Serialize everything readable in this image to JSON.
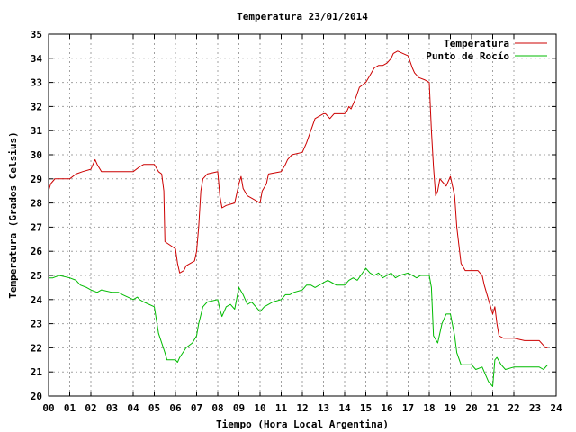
{
  "chart_data": {
    "type": "line",
    "title": "Temperatura 23/01/2014",
    "xlabel": "Tiempo (Hora Local Argentina)",
    "ylabel": "Temperatura (Grados Celsius)",
    "xlim": [
      0,
      24
    ],
    "ylim": [
      20,
      35
    ],
    "x_ticks": [
      "00",
      "01",
      "02",
      "03",
      "04",
      "05",
      "06",
      "07",
      "08",
      "09",
      "10",
      "11",
      "12",
      "13",
      "14",
      "15",
      "16",
      "17",
      "18",
      "19",
      "20",
      "21",
      "22",
      "23",
      "24"
    ],
    "y_ticks": [
      "20",
      "21",
      "22",
      "23",
      "24",
      "25",
      "26",
      "27",
      "28",
      "29",
      "30",
      "31",
      "32",
      "33",
      "34",
      "35"
    ],
    "grid": true,
    "legend_position": "top-right",
    "series": [
      {
        "name": "Temperatura",
        "color": "#cc0000",
        "x": [
          0.0,
          0.1,
          0.2,
          0.3,
          0.5,
          1.0,
          1.3,
          1.6,
          2.0,
          2.2,
          2.3,
          2.5,
          3.0,
          3.5,
          4.0,
          4.3,
          4.5,
          5.0,
          5.2,
          5.35,
          5.45,
          5.5,
          6.0,
          6.1,
          6.2,
          6.4,
          6.5,
          6.9,
          7.0,
          7.1,
          7.2,
          7.3,
          7.5,
          8.0,
          8.1,
          8.2,
          8.4,
          8.8,
          9.0,
          9.1,
          9.2,
          9.4,
          9.6,
          10.0,
          10.1,
          10.3,
          10.4,
          11.0,
          11.2,
          11.3,
          11.5,
          12.0,
          12.2,
          12.4,
          12.6,
          13.0,
          13.1,
          13.3,
          13.5,
          14.0,
          14.1,
          14.2,
          14.3,
          14.5,
          14.7,
          15.0,
          15.2,
          15.4,
          15.6,
          15.8,
          16.0,
          16.2,
          16.3,
          16.5,
          17.0,
          17.2,
          17.3,
          17.5,
          17.8,
          18.0,
          18.1,
          18.2,
          18.3,
          18.4,
          18.5,
          18.6,
          18.8,
          19.0,
          19.2,
          19.3,
          19.5,
          19.7,
          19.8,
          20.0,
          20.3,
          20.5,
          20.6,
          20.8,
          21.0,
          21.1,
          21.2,
          21.3,
          21.5,
          22.0,
          22.5,
          23.0,
          23.2,
          23.4,
          23.5,
          23.6
        ],
        "y": [
          28.5,
          28.8,
          28.9,
          29.0,
          29.0,
          29.0,
          29.2,
          29.3,
          29.4,
          29.8,
          29.6,
          29.3,
          29.3,
          29.3,
          29.3,
          29.5,
          29.6,
          29.6,
          29.3,
          29.2,
          28.5,
          26.4,
          26.1,
          25.5,
          25.1,
          25.2,
          25.4,
          25.6,
          26.0,
          27.0,
          28.5,
          29.0,
          29.2,
          29.3,
          28.3,
          27.8,
          27.9,
          28.0,
          28.8,
          29.1,
          28.6,
          28.3,
          28.2,
          28.0,
          28.5,
          28.8,
          29.2,
          29.3,
          29.6,
          29.8,
          30.0,
          30.1,
          30.5,
          31.0,
          31.5,
          31.7,
          31.7,
          31.5,
          31.7,
          31.7,
          31.8,
          32.0,
          31.9,
          32.3,
          32.8,
          33.0,
          33.3,
          33.6,
          33.7,
          33.7,
          33.8,
          34.0,
          34.2,
          34.3,
          34.1,
          33.6,
          33.4,
          33.2,
          33.1,
          33.0,
          31.0,
          29.5,
          28.3,
          28.5,
          29.0,
          28.9,
          28.7,
          29.1,
          28.3,
          27.0,
          25.5,
          25.2,
          25.2,
          25.2,
          25.2,
          25.0,
          24.6,
          24.0,
          23.4,
          23.7,
          23.0,
          22.5,
          22.4,
          22.4,
          22.3,
          22.3,
          22.3,
          22.1,
          22.0,
          22.0
        ]
      },
      {
        "name": "Punto de Rocío",
        "color": "#00bb00",
        "x": [
          0.0,
          0.2,
          0.5,
          1.0,
          1.3,
          1.5,
          1.8,
          2.0,
          2.3,
          2.5,
          3.0,
          3.3,
          3.5,
          4.0,
          4.2,
          4.3,
          4.5,
          5.0,
          5.2,
          5.5,
          5.6,
          5.8,
          6.0,
          6.1,
          6.2,
          6.5,
          6.8,
          7.0,
          7.1,
          7.3,
          7.5,
          8.0,
          8.1,
          8.2,
          8.4,
          8.6,
          8.8,
          9.0,
          9.2,
          9.4,
          9.6,
          10.0,
          10.2,
          10.4,
          10.6,
          11.0,
          11.2,
          11.4,
          11.6,
          12.0,
          12.2,
          12.4,
          12.6,
          13.0,
          13.2,
          13.4,
          13.6,
          14.0,
          14.2,
          14.4,
          14.6,
          15.0,
          15.2,
          15.4,
          15.6,
          15.8,
          16.0,
          16.2,
          16.4,
          16.6,
          17.0,
          17.2,
          17.4,
          17.6,
          18.0,
          18.1,
          18.2,
          18.4,
          18.6,
          18.8,
          19.0,
          19.2,
          19.3,
          19.5,
          19.8,
          20.0,
          20.2,
          20.5,
          20.8,
          21.0,
          21.1,
          21.2,
          21.4,
          21.6,
          22.0,
          22.4,
          22.8,
          23.2,
          23.4,
          23.6
        ],
        "y": [
          24.9,
          24.9,
          25.0,
          24.9,
          24.8,
          24.6,
          24.5,
          24.4,
          24.3,
          24.4,
          24.3,
          24.3,
          24.2,
          24.0,
          24.1,
          24.0,
          23.9,
          23.7,
          22.6,
          21.8,
          21.5,
          21.5,
          21.5,
          21.4,
          21.6,
          22.0,
          22.2,
          22.5,
          23.0,
          23.7,
          23.9,
          24.0,
          23.6,
          23.3,
          23.7,
          23.8,
          23.6,
          24.5,
          24.2,
          23.8,
          23.9,
          23.5,
          23.7,
          23.8,
          23.9,
          24.0,
          24.2,
          24.2,
          24.3,
          24.4,
          24.6,
          24.6,
          24.5,
          24.7,
          24.8,
          24.7,
          24.6,
          24.6,
          24.8,
          24.9,
          24.8,
          25.3,
          25.1,
          25.0,
          25.1,
          24.9,
          25.0,
          25.1,
          24.9,
          25.0,
          25.1,
          25.0,
          24.9,
          25.0,
          25.0,
          24.5,
          22.5,
          22.2,
          23.0,
          23.4,
          23.4,
          22.5,
          21.8,
          21.3,
          21.3,
          21.3,
          21.1,
          21.2,
          20.6,
          20.4,
          21.5,
          21.6,
          21.3,
          21.1,
          21.2,
          21.2,
          21.2,
          21.2,
          21.1,
          21.3
        ]
      }
    ]
  }
}
